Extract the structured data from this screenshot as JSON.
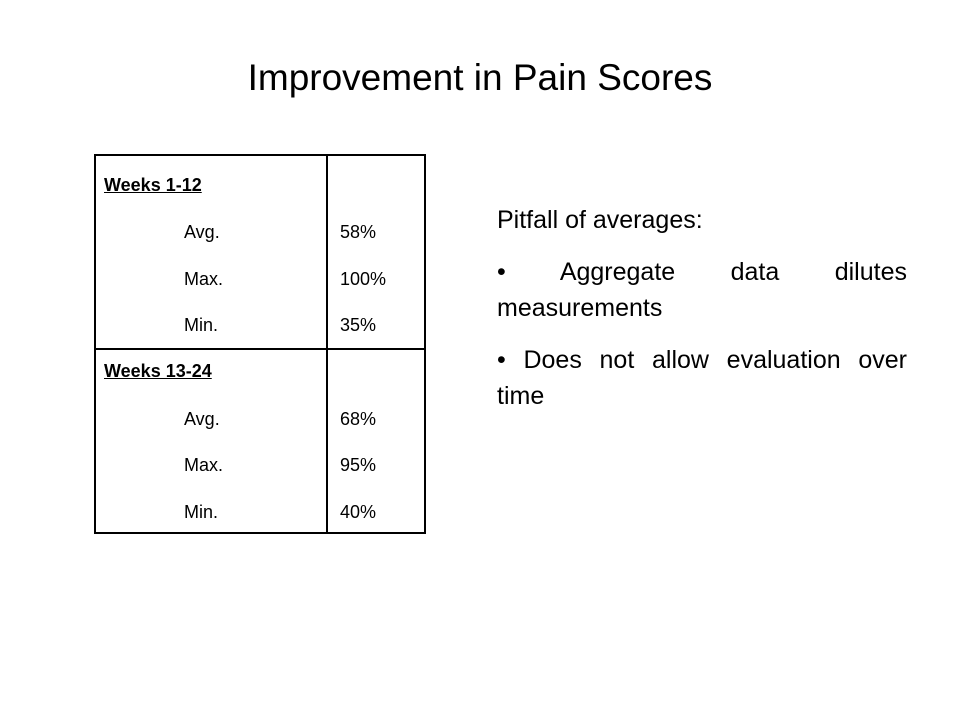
{
  "slide": {
    "title": "Improvement in Pain Scores"
  },
  "table": {
    "groups": [
      {
        "header": "Weeks 1-12",
        "rows": [
          {
            "label": "Avg.",
            "value": "58%"
          },
          {
            "label": "Max.",
            "value": "100%"
          },
          {
            "label": "Min.",
            "value": "35%"
          }
        ]
      },
      {
        "header": "Weeks 13-24",
        "rows": [
          {
            "label": "Avg.",
            "value": "68%"
          },
          {
            "label": "Max.",
            "value": "95%"
          },
          {
            "label": "Min.",
            "value": "40%"
          }
        ]
      }
    ]
  },
  "notes": {
    "heading": "Pitfall of averages:",
    "bullets": [
      "• Aggregate data dilutes measurements",
      "• Does not allow evaluation over time"
    ]
  }
}
